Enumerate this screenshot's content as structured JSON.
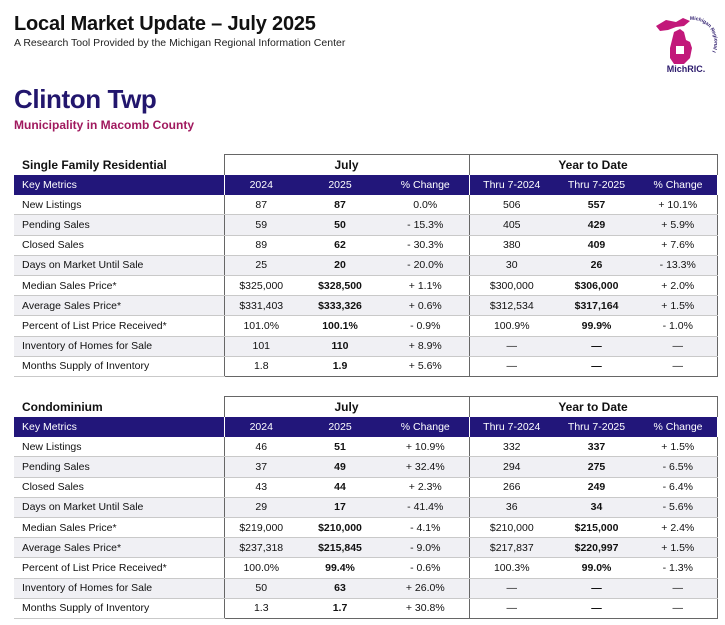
{
  "report": {
    "title": "Local Market Update – July 2025",
    "subtitle": "A Research Tool Provided by the Michigan Regional Information Center",
    "logo_text": "MichRIC.",
    "logo_arc_text": "Michigan Regional Information Center",
    "brand_colors": {
      "navy": "#22167a",
      "magenta": "#a0195e"
    }
  },
  "municipality": {
    "name": "Clinton Twp",
    "county": "Municipality in Macomb County"
  },
  "columns": {
    "key_metrics": "Key Metrics",
    "group_month": "July",
    "group_ytd": "Year to Date",
    "y1": "2024",
    "y2": "2025",
    "pct": "% Change",
    "ytd1": "Thru 7-2024",
    "ytd2": "Thru 7-2025"
  },
  "sections": [
    {
      "name": "Single Family Residential",
      "rows": [
        {
          "metric": "New Listings",
          "y1": "87",
          "y2": "87",
          "pct": "0.0%",
          "ytd1": "506",
          "ytd2": "557",
          "ytd_pct": "+ 10.1%"
        },
        {
          "metric": "Pending Sales",
          "y1": "59",
          "y2": "50",
          "pct": "- 15.3%",
          "ytd1": "405",
          "ytd2": "429",
          "ytd_pct": "+ 5.9%"
        },
        {
          "metric": "Closed Sales",
          "y1": "89",
          "y2": "62",
          "pct": "- 30.3%",
          "ytd1": "380",
          "ytd2": "409",
          "ytd_pct": "+ 7.6%"
        },
        {
          "metric": "Days on Market Until Sale",
          "y1": "25",
          "y2": "20",
          "pct": "- 20.0%",
          "ytd1": "30",
          "ytd2": "26",
          "ytd_pct": "- 13.3%"
        },
        {
          "metric": "Median Sales Price*",
          "y1": "$325,000",
          "y2": "$328,500",
          "pct": "+ 1.1%",
          "ytd1": "$300,000",
          "ytd2": "$306,000",
          "ytd_pct": "+ 2.0%"
        },
        {
          "metric": "Average Sales Price*",
          "y1": "$331,403",
          "y2": "$333,326",
          "pct": "+ 0.6%",
          "ytd1": "$312,534",
          "ytd2": "$317,164",
          "ytd_pct": "+ 1.5%"
        },
        {
          "metric": "Percent of List Price Received*",
          "y1": "101.0%",
          "y2": "100.1%",
          "pct": "- 0.9%",
          "ytd1": "100.9%",
          "ytd2": "99.9%",
          "ytd_pct": "- 1.0%"
        },
        {
          "metric": "Inventory of Homes for Sale",
          "y1": "101",
          "y2": "110",
          "pct": "+ 8.9%",
          "ytd1": "—",
          "ytd2": "—",
          "ytd_pct": "—"
        },
        {
          "metric": "Months Supply of Inventory",
          "y1": "1.8",
          "y2": "1.9",
          "pct": "+ 5.6%",
          "ytd1": "—",
          "ytd2": "—",
          "ytd_pct": "—"
        }
      ]
    },
    {
      "name": "Condominium",
      "rows": [
        {
          "metric": "New Listings",
          "y1": "46",
          "y2": "51",
          "pct": "+ 10.9%",
          "ytd1": "332",
          "ytd2": "337",
          "ytd_pct": "+ 1.5%"
        },
        {
          "metric": "Pending Sales",
          "y1": "37",
          "y2": "49",
          "pct": "+ 32.4%",
          "ytd1": "294",
          "ytd2": "275",
          "ytd_pct": "- 6.5%"
        },
        {
          "metric": "Closed Sales",
          "y1": "43",
          "y2": "44",
          "pct": "+ 2.3%",
          "ytd1": "266",
          "ytd2": "249",
          "ytd_pct": "- 6.4%"
        },
        {
          "metric": "Days on Market Until Sale",
          "y1": "29",
          "y2": "17",
          "pct": "- 41.4%",
          "ytd1": "36",
          "ytd2": "34",
          "ytd_pct": "- 5.6%"
        },
        {
          "metric": "Median Sales Price*",
          "y1": "$219,000",
          "y2": "$210,000",
          "pct": "- 4.1%",
          "ytd1": "$210,000",
          "ytd2": "$215,000",
          "ytd_pct": "+ 2.4%"
        },
        {
          "metric": "Average Sales Price*",
          "y1": "$237,318",
          "y2": "$215,845",
          "pct": "- 9.0%",
          "ytd1": "$217,837",
          "ytd2": "$220,997",
          "ytd_pct": "+ 1.5%"
        },
        {
          "metric": "Percent of List Price Received*",
          "y1": "100.0%",
          "y2": "99.4%",
          "pct": "- 0.6%",
          "ytd1": "100.3%",
          "ytd2": "99.0%",
          "ytd_pct": "- 1.3%"
        },
        {
          "metric": "Inventory of Homes for Sale",
          "y1": "50",
          "y2": "63",
          "pct": "+ 26.0%",
          "ytd1": "—",
          "ytd2": "—",
          "ytd_pct": "—"
        },
        {
          "metric": "Months Supply of Inventory",
          "y1": "1.3",
          "y2": "1.7",
          "pct": "+ 30.8%",
          "ytd1": "—",
          "ytd2": "—",
          "ytd_pct": "—"
        }
      ]
    }
  ]
}
